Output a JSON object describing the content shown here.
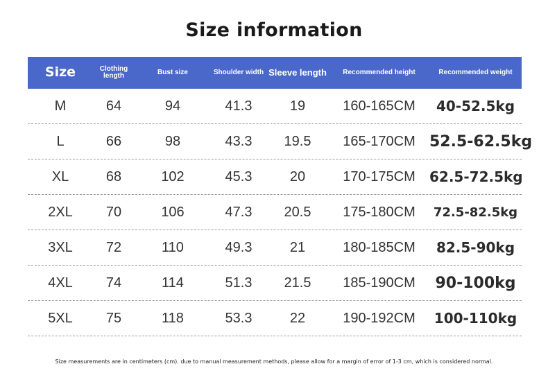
{
  "title": "Size information",
  "headers": {
    "size": "Size",
    "clothing_length": "Clothing length",
    "bust_size": "Bust size",
    "shoulder_width": "Shoulder width",
    "sleeve_length": "Sleeve length",
    "recommended_height": "Recommended height",
    "recommended_weight": "Recommended weight"
  },
  "rows": [
    {
      "size": "M",
      "clothing_length": "64",
      "bust": "94",
      "shoulder": "41.3",
      "sleeve": "19",
      "height": "160-165CM",
      "weight": "40-52.5kg"
    },
    {
      "size": "L",
      "clothing_length": "66",
      "bust": "98",
      "shoulder": "43.3",
      "sleeve": "19.5",
      "height": "165-170CM",
      "weight": "52.5-62.5kg"
    },
    {
      "size": "XL",
      "clothing_length": "68",
      "bust": "102",
      "shoulder": "45.3",
      "sleeve": "20",
      "height": "170-175CM",
      "weight": "62.5-72.5kg"
    },
    {
      "size": "2XL",
      "clothing_length": "70",
      "bust": "106",
      "shoulder": "47.3",
      "sleeve": "20.5",
      "height": "175-180CM",
      "weight": "72.5-82.5kg"
    },
    {
      "size": "3XL",
      "clothing_length": "72",
      "bust": "110",
      "shoulder": "49.3",
      "sleeve": "21",
      "height": "180-185CM",
      "weight": "82.5-90kg"
    },
    {
      "size": "4XL",
      "clothing_length": "74",
      "bust": "114",
      "shoulder": "51.3",
      "sleeve": "21.5",
      "height": "185-190CM",
      "weight": "90-100kg"
    },
    {
      "size": "5XL",
      "clothing_length": "75",
      "bust": "118",
      "shoulder": "53.3",
      "sleeve": "22",
      "height": "190-192CM",
      "weight": "100-110kg"
    }
  ],
  "footnote": "Size measurements are in centimeters (cm). due to manual measurement methods, please allow for a margin of error of 1-3 cm, which is considered normal.",
  "colors": {
    "header_bg": "#4a68c9",
    "header_text": "#ffffff",
    "divider": "#9a9a9a"
  }
}
